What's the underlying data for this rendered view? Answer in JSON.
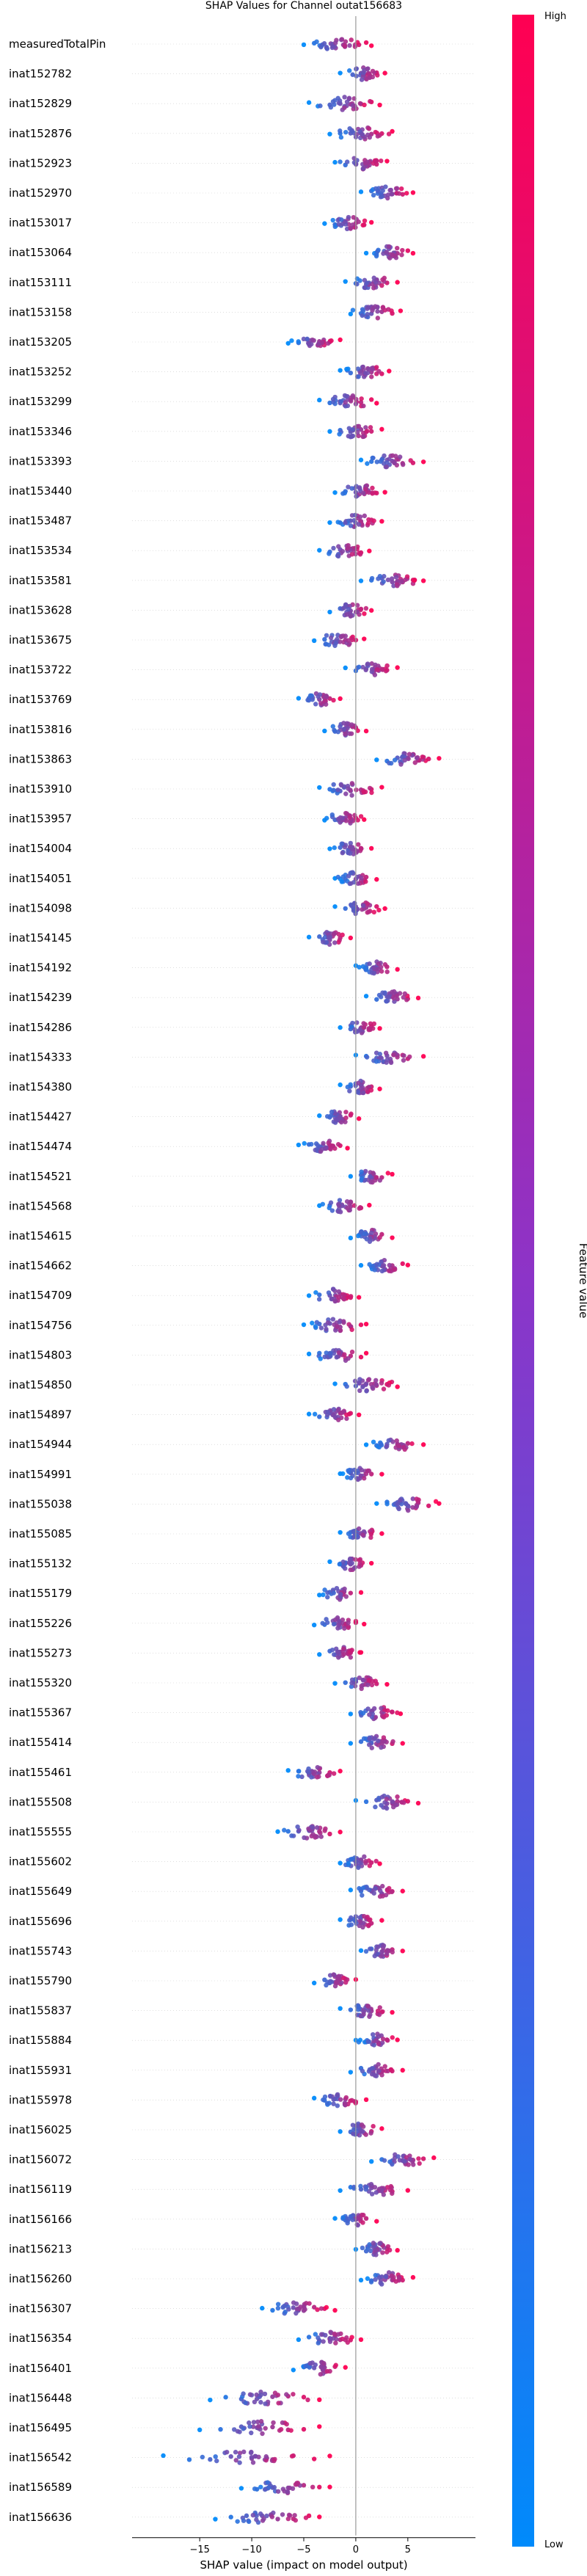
{
  "chart_data": {
    "type": "scatter",
    "subtype": "shap-beeswarm",
    "title": "SHAP Values for Channel outat156683",
    "xlabel": "SHAP value (impact on model output)",
    "ylabel": "",
    "xlim": [
      -21.5,
      11.5
    ],
    "xticks": [
      -15,
      -10,
      -5,
      0,
      5
    ],
    "colorbar": {
      "label": "Feature value",
      "high_label": "High",
      "low_label": "Low",
      "high_color": "#ff0052",
      "low_color": "#008afb"
    },
    "features": [
      {
        "name": "measuredTotalPin",
        "values": [
          -5.0,
          -4.0,
          -3.2,
          -2.2,
          -1.2,
          0.3,
          1.0,
          1.5
        ],
        "summary": "low=blue on the left, high=red on the right"
      },
      {
        "name": "inat152782",
        "values": [
          -1.5,
          -0.3,
          0.5,
          1.2,
          2.0,
          2.8
        ],
        "summary": "centered slightly positive"
      },
      {
        "name": "inat152829",
        "values": [
          -4.5,
          -2.5,
          -1.5,
          -0.5,
          0.5,
          1.5,
          2.3
        ]
      },
      {
        "name": "inat152876",
        "values": [
          -2.5,
          -1.5,
          -0.5,
          0.5,
          1.5,
          2.5,
          3.5
        ]
      },
      {
        "name": "inat152923",
        "values": [
          -2.0,
          -1.0,
          0.0,
          1.0,
          2.0,
          3.0
        ]
      },
      {
        "name": "inat152970",
        "values": [
          0.5,
          1.5,
          2.5,
          3.5,
          4.5,
          5.5
        ]
      },
      {
        "name": "inat153017",
        "values": [
          -3.0,
          -2.0,
          -1.0,
          0.0,
          0.8,
          1.5
        ]
      },
      {
        "name": "inat153064",
        "values": [
          1.0,
          2.0,
          3.0,
          4.0,
          5.0,
          5.5
        ]
      },
      {
        "name": "inat153111",
        "values": [
          -1.0,
          0.0,
          1.0,
          2.0,
          3.0,
          4.0
        ]
      },
      {
        "name": "inat153158",
        "values": [
          -0.5,
          0.5,
          1.5,
          2.5,
          3.5,
          4.3
        ]
      },
      {
        "name": "inat153205",
        "values": [
          -6.5,
          -5.5,
          -4.5,
          -3.5,
          -2.5,
          -1.5
        ]
      },
      {
        "name": "inat153252",
        "values": [
          -1.5,
          -0.5,
          0.5,
          1.5,
          2.5,
          3.2
        ]
      },
      {
        "name": "inat153299",
        "values": [
          -3.5,
          -2.5,
          -1.5,
          -0.5,
          0.5,
          1.5,
          2.0
        ]
      },
      {
        "name": "inat153346",
        "values": [
          -2.5,
          -1.5,
          -0.5,
          0.5,
          1.5,
          2.5
        ]
      },
      {
        "name": "inat153393",
        "values": [
          0.5,
          1.5,
          2.5,
          3.5,
          4.5,
          5.5,
          6.5
        ]
      },
      {
        "name": "inat153440",
        "values": [
          -2.0,
          -1.0,
          0.0,
          1.0,
          2.0,
          2.8
        ]
      },
      {
        "name": "inat153487",
        "values": [
          -2.5,
          -1.5,
          -0.5,
          0.5,
          1.5,
          2.5
        ]
      },
      {
        "name": "inat153534",
        "values": [
          -3.5,
          -2.5,
          -1.5,
          -0.5,
          0.5,
          1.3
        ]
      },
      {
        "name": "inat153581",
        "values": [
          0.5,
          1.5,
          2.5,
          3.5,
          4.5,
          5.5,
          6.5
        ]
      },
      {
        "name": "inat153628",
        "values": [
          -2.5,
          -1.5,
          -0.5,
          0.5,
          1.5
        ]
      },
      {
        "name": "inat153675",
        "values": [
          -4.0,
          -3.0,
          -2.0,
          -1.0,
          0.0,
          0.8
        ]
      },
      {
        "name": "inat153722",
        "values": [
          -1.0,
          0.0,
          1.0,
          2.0,
          3.0,
          4.0
        ]
      },
      {
        "name": "inat153769",
        "values": [
          -5.5,
          -4.5,
          -3.5,
          -2.5,
          -1.5
        ]
      },
      {
        "name": "inat153816",
        "values": [
          -3.0,
          -2.0,
          -1.0,
          0.0,
          1.0
        ]
      },
      {
        "name": "inat153863",
        "values": [
          2.0,
          3.0,
          4.0,
          5.0,
          6.0,
          7.0,
          8.0
        ]
      },
      {
        "name": "inat153910",
        "values": [
          -3.5,
          -2.5,
          -1.5,
          -0.5,
          0.5,
          1.5,
          2.5
        ]
      },
      {
        "name": "inat153957",
        "values": [
          -3.0,
          -2.0,
          -1.0,
          0.0,
          0.8
        ]
      },
      {
        "name": "inat154004",
        "values": [
          -2.5,
          -1.5,
          -0.5,
          0.5,
          1.5
        ]
      },
      {
        "name": "inat154051",
        "values": [
          -2.0,
          -1.0,
          0.0,
          1.0,
          2.0
        ]
      },
      {
        "name": "inat154098",
        "values": [
          -2.0,
          -1.0,
          0.0,
          1.0,
          2.0,
          2.8
        ]
      },
      {
        "name": "inat154145",
        "values": [
          -4.5,
          -3.5,
          -2.5,
          -1.5,
          -0.5
        ]
      },
      {
        "name": "inat154192",
        "values": [
          0.0,
          1.0,
          2.0,
          3.0,
          4.0
        ]
      },
      {
        "name": "inat154239",
        "values": [
          1.0,
          2.0,
          3.0,
          4.0,
          5.0,
          6.0
        ]
      },
      {
        "name": "inat154286",
        "values": [
          -1.5,
          -0.5,
          0.5,
          1.5,
          2.3
        ]
      },
      {
        "name": "inat154333",
        "values": [
          0.0,
          1.0,
          2.0,
          3.0,
          4.0,
          5.0,
          6.5
        ]
      },
      {
        "name": "inat154380",
        "values": [
          -1.5,
          -0.5,
          0.5,
          1.5,
          2.3
        ]
      },
      {
        "name": "inat154427",
        "values": [
          -3.5,
          -2.5,
          -1.5,
          -0.5,
          0.3
        ]
      },
      {
        "name": "inat154474",
        "values": [
          -5.5,
          -4.5,
          -3.5,
          -2.5,
          -1.5,
          -0.8
        ]
      },
      {
        "name": "inat154521",
        "values": [
          -0.5,
          0.5,
          1.5,
          2.5,
          3.5
        ]
      },
      {
        "name": "inat154568",
        "values": [
          -3.5,
          -2.5,
          -1.5,
          -0.5,
          0.5,
          1.3
        ]
      },
      {
        "name": "inat154615",
        "values": [
          -0.5,
          0.5,
          1.5,
          2.5,
          3.5
        ]
      },
      {
        "name": "inat154662",
        "values": [
          0.5,
          1.5,
          2.5,
          3.5,
          4.5,
          5.0
        ]
      },
      {
        "name": "inat154709",
        "values": [
          -4.5,
          -3.5,
          -2.5,
          -1.5,
          -0.5,
          0.3
        ]
      },
      {
        "name": "inat154756",
        "values": [
          -5.0,
          -3.5,
          -2.5,
          -1.5,
          -0.5,
          0.5,
          1.0
        ]
      },
      {
        "name": "inat154803",
        "values": [
          -4.5,
          -3.5,
          -2.5,
          -1.5,
          -0.5,
          0.5,
          1.0
        ]
      },
      {
        "name": "inat154850",
        "values": [
          -2.0,
          -1.0,
          0.0,
          1.0,
          2.0,
          3.0,
          4.0
        ]
      },
      {
        "name": "inat154897",
        "values": [
          -4.5,
          -3.5,
          -2.5,
          -1.5,
          -0.5,
          0.3
        ]
      },
      {
        "name": "inat154944",
        "values": [
          1.0,
          2.0,
          3.0,
          4.0,
          5.0,
          6.5
        ]
      },
      {
        "name": "inat154991",
        "values": [
          -1.5,
          -0.5,
          0.5,
          1.5,
          2.5
        ]
      },
      {
        "name": "inat155038",
        "values": [
          2.0,
          3.0,
          4.0,
          5.0,
          6.0,
          7.0,
          8.0
        ]
      },
      {
        "name": "inat155085",
        "values": [
          -1.5,
          -0.5,
          0.5,
          1.5,
          2.5
        ]
      },
      {
        "name": "inat155132",
        "values": [
          -2.5,
          -1.5,
          -0.5,
          0.5,
          1.5
        ]
      },
      {
        "name": "inat155179",
        "values": [
          -3.5,
          -2.5,
          -1.5,
          -0.5,
          0.5
        ]
      },
      {
        "name": "inat155226",
        "values": [
          -4.0,
          -3.0,
          -2.0,
          -1.0,
          0.0,
          0.8
        ]
      },
      {
        "name": "inat155273",
        "values": [
          -3.5,
          -2.5,
          -1.5,
          -0.5,
          0.5
        ]
      },
      {
        "name": "inat155320",
        "values": [
          -2.0,
          -1.0,
          0.0,
          1.0,
          2.0,
          3.0
        ]
      },
      {
        "name": "inat155367",
        "values": [
          -0.5,
          0.5,
          1.5,
          2.5,
          3.5,
          4.3
        ]
      },
      {
        "name": "inat155414",
        "values": [
          -0.5,
          0.5,
          1.5,
          2.5,
          3.5,
          4.5
        ]
      },
      {
        "name": "inat155461",
        "values": [
          -6.5,
          -5.5,
          -4.5,
          -3.5,
          -2.5,
          -1.5
        ]
      },
      {
        "name": "inat155508",
        "values": [
          0.0,
          1.0,
          2.0,
          3.0,
          4.0,
          5.0,
          6.0
        ]
      },
      {
        "name": "inat155555",
        "values": [
          -7.5,
          -6.5,
          -5.5,
          -4.5,
          -3.5,
          -2.5,
          -1.5
        ]
      },
      {
        "name": "inat155602",
        "values": [
          -1.5,
          -0.5,
          0.5,
          1.5,
          2.3
        ]
      },
      {
        "name": "inat155649",
        "values": [
          -0.5,
          0.5,
          1.5,
          2.5,
          3.5,
          4.5
        ]
      },
      {
        "name": "inat155696",
        "values": [
          -1.5,
          -0.5,
          0.5,
          1.5,
          2.5
        ]
      },
      {
        "name": "inat155743",
        "values": [
          0.5,
          1.5,
          2.5,
          3.5,
          4.5
        ]
      },
      {
        "name": "inat155790",
        "values": [
          -4.0,
          -3.0,
          -2.0,
          -1.0,
          0.0
        ]
      },
      {
        "name": "inat155837",
        "values": [
          -1.5,
          -0.5,
          0.5,
          1.5,
          2.5,
          3.5
        ]
      },
      {
        "name": "inat155884",
        "values": [
          0.0,
          1.0,
          2.0,
          3.0,
          4.0
        ]
      },
      {
        "name": "inat155931",
        "values": [
          -0.5,
          0.5,
          1.5,
          2.5,
          3.5,
          4.5
        ]
      },
      {
        "name": "inat155978",
        "values": [
          -4.0,
          -3.0,
          -2.0,
          -1.0,
          0.0,
          1.0
        ]
      },
      {
        "name": "inat156025",
        "values": [
          -1.5,
          -0.5,
          0.5,
          1.5,
          2.5
        ]
      },
      {
        "name": "inat156072",
        "values": [
          1.5,
          2.5,
          3.5,
          4.5,
          5.5,
          6.5,
          7.5
        ]
      },
      {
        "name": "inat156119",
        "values": [
          -1.5,
          -0.5,
          0.5,
          1.5,
          2.5,
          3.5,
          5.0
        ]
      },
      {
        "name": "inat156166",
        "values": [
          -2.0,
          -1.0,
          0.0,
          1.0,
          2.0
        ]
      },
      {
        "name": "inat156213",
        "values": [
          0.0,
          1.0,
          2.0,
          3.0,
          4.0
        ]
      },
      {
        "name": "inat156260",
        "values": [
          0.5,
          1.5,
          2.5,
          3.5,
          4.5,
          5.5
        ]
      },
      {
        "name": "inat156307",
        "values": [
          -9.0,
          -8.0,
          -7.0,
          -6.0,
          -5.0,
          -4.0,
          -3.0,
          -2.0
        ]
      },
      {
        "name": "inat156354",
        "values": [
          -5.5,
          -4.5,
          -3.5,
          -2.5,
          -1.5,
          -0.5,
          0.5
        ]
      },
      {
        "name": "inat156401",
        "values": [
          -6.0,
          -5.0,
          -4.0,
          -3.0,
          -2.0,
          -1.0
        ]
      },
      {
        "name": "inat156448",
        "values": [
          -14.0,
          -12.5,
          -11.0,
          -9.5,
          -8.0,
          -6.5,
          -5.0,
          -3.5
        ]
      },
      {
        "name": "inat156495",
        "values": [
          -15.0,
          -13.0,
          -11.0,
          -9.5,
          -8.0,
          -6.5,
          -5.0,
          -3.5
        ]
      },
      {
        "name": "inat156542",
        "values": [
          -18.5,
          -16.0,
          -14.0,
          -12.0,
          -10.0,
          -8.0,
          -6.0,
          -4.0,
          -2.5
        ]
      },
      {
        "name": "inat156589",
        "values": [
          -11.0,
          -9.5,
          -8.0,
          -6.5,
          -5.0,
          -3.5,
          -2.5
        ]
      },
      {
        "name": "inat156636",
        "values": [
          -13.5,
          -12.0,
          -10.5,
          -9.0,
          -7.5,
          -6.0,
          -4.5,
          -3.5
        ]
      }
    ]
  }
}
